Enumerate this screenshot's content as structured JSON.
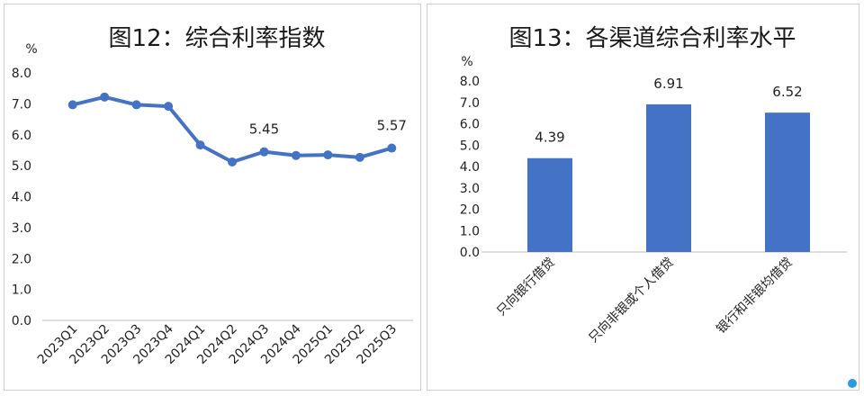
{
  "chart_data": [
    {
      "type": "line",
      "title": "图12：综合利率指数",
      "ylabel": "%",
      "ylim": [
        0,
        8
      ],
      "yticks": [
        "0.0",
        "1.0",
        "2.0",
        "3.0",
        "4.0",
        "5.0",
        "6.0",
        "7.0",
        "8.0"
      ],
      "categories": [
        "2023Q1",
        "2023Q2",
        "2023Q3",
        "2023Q4",
        "2024Q1",
        "2024Q2",
        "2024Q3",
        "2024Q4",
        "2025Q1",
        "2025Q2",
        "2025Q3"
      ],
      "series": [
        {
          "values": [
            6.97,
            7.22,
            6.97,
            6.92,
            5.67,
            5.12,
            5.45,
            5.33,
            5.35,
            5.27,
            5.57
          ]
        }
      ],
      "data_labels": [
        {
          "index": 6,
          "text": "5.45"
        },
        {
          "index": 10,
          "text": "5.57"
        }
      ],
      "color": "#4472c4",
      "grid": false
    },
    {
      "type": "bar",
      "title": "图13：各渠道综合利率水平",
      "ylabel": "%",
      "ylim": [
        0,
        8
      ],
      "yticks": [
        "0.0",
        "1.0",
        "2.0",
        "3.0",
        "4.0",
        "5.0",
        "6.0",
        "7.0",
        "8.0"
      ],
      "categories": [
        "只向银行借贷",
        "只向非银或个人借贷",
        "银行和非银均借贷"
      ],
      "values": [
        4.39,
        6.91,
        6.52
      ],
      "data_labels": [
        "4.39",
        "6.91",
        "6.52"
      ],
      "color": "#4472c4",
      "grid": false
    }
  ]
}
